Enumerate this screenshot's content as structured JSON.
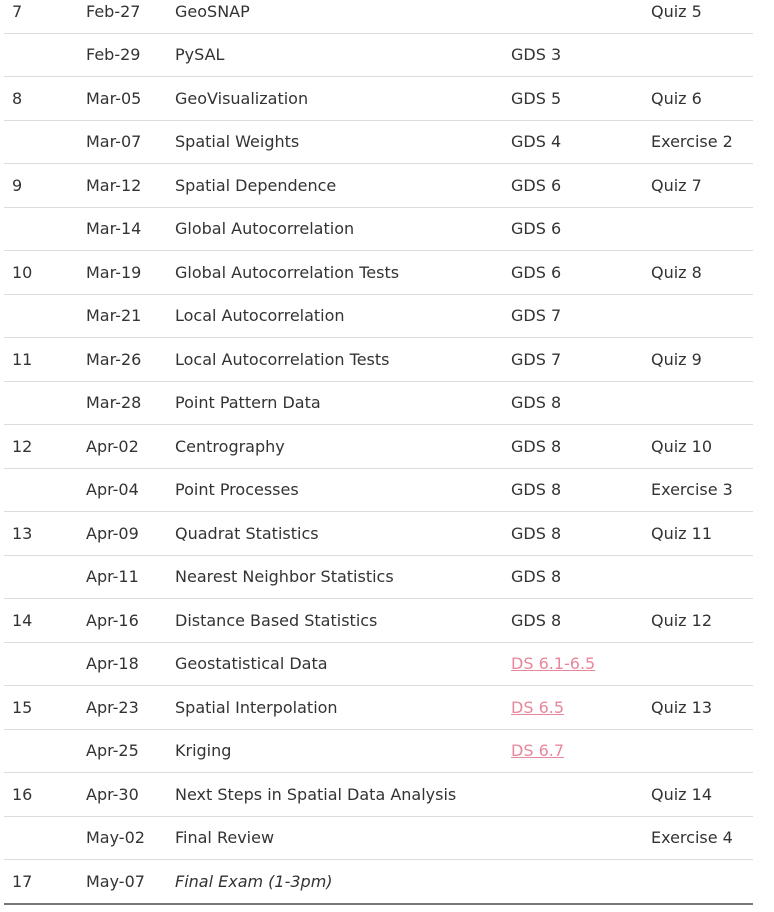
{
  "rows": [
    {
      "week": "7",
      "date": "Feb-27",
      "topic": "GeoSNAP",
      "reading": "",
      "due": "Quiz 5"
    },
    {
      "week": "",
      "date": "Feb-29",
      "topic": "PySAL",
      "reading": "GDS 3",
      "due": ""
    },
    {
      "week": "8",
      "date": "Mar-05",
      "topic": "GeoVisualization",
      "reading": "GDS 5",
      "due": "Quiz 6"
    },
    {
      "week": "",
      "date": "Mar-07",
      "topic": "Spatial Weights",
      "reading": "GDS 4",
      "due": "Exercise 2"
    },
    {
      "week": "9",
      "date": "Mar-12",
      "topic": "Spatial Dependence",
      "reading": "GDS 6",
      "due": "Quiz 7"
    },
    {
      "week": "",
      "date": "Mar-14",
      "topic": "Global Autocorrelation",
      "reading": "GDS 6",
      "due": ""
    },
    {
      "week": "10",
      "date": "Mar-19",
      "topic": "Global Autocorrelation Tests",
      "reading": "GDS 6",
      "due": "Quiz 8"
    },
    {
      "week": "",
      "date": "Mar-21",
      "topic": "Local Autocorrelation",
      "reading": "GDS 7",
      "due": ""
    },
    {
      "week": "11",
      "date": "Mar-26",
      "topic": "Local Autocorrelation Tests",
      "reading": "GDS 7",
      "due": "Quiz 9"
    },
    {
      "week": "",
      "date": "Mar-28",
      "topic": "Point Pattern Data",
      "reading": "GDS 8",
      "due": ""
    },
    {
      "week": "12",
      "date": "Apr-02",
      "topic": "Centrography",
      "reading": "GDS 8",
      "due": "Quiz 10"
    },
    {
      "week": "",
      "date": "Apr-04",
      "topic": "Point Processes",
      "reading": "GDS 8",
      "due": "Exercise 3"
    },
    {
      "week": "13",
      "date": "Apr-09",
      "topic": "Quadrat Statistics",
      "reading": "GDS 8",
      "due": "Quiz 11"
    },
    {
      "week": "",
      "date": "Apr-11",
      "topic": "Nearest Neighbor Statistics",
      "reading": "GDS 8",
      "due": ""
    },
    {
      "week": "14",
      "date": "Apr-16",
      "topic": "Distance Based Statistics",
      "reading": "GDS 8",
      "due": "Quiz 12"
    },
    {
      "week": "",
      "date": "Apr-18",
      "topic": "Geostatistical Data",
      "reading": "DS 6.1-6.5",
      "reading_is_link": true,
      "due": ""
    },
    {
      "week": "15",
      "date": "Apr-23",
      "topic": "Spatial Interpolation",
      "reading": "DS 6.5",
      "reading_is_link": true,
      "due": "Quiz 13"
    },
    {
      "week": "",
      "date": "Apr-25",
      "topic": "Kriging",
      "reading": "DS 6.7",
      "reading_is_link": true,
      "due": ""
    },
    {
      "week": "16",
      "date": "Apr-30",
      "topic": "Next Steps in Spatial Data Analysis",
      "reading": "",
      "due": "Quiz 14"
    },
    {
      "week": "",
      "date": "May-02",
      "topic": "Final Review",
      "reading": "",
      "due": "Exercise 4"
    },
    {
      "week": "17",
      "date": "May-07",
      "topic": "Final Exam (1-3pm)",
      "topic_italic": true,
      "reading": "",
      "due": ""
    }
  ],
  "colors": {
    "text": "#333333",
    "link": "#e8879b",
    "row_border": "#dcdcdc",
    "table_bottom_border": "#777777"
  }
}
